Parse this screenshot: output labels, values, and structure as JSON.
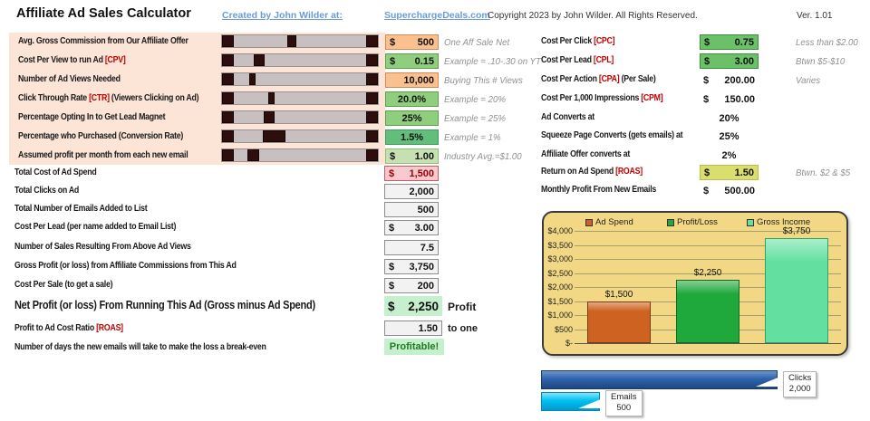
{
  "header": {
    "title": "Affiliate Ad Sales Calculator",
    "created_by": "Created by John Wilder at:",
    "site": "SuperchargeDeals.com",
    "copyright": "Copyright 2023 by John Wilder. All Rights Reserved.",
    "version": "Ver. 1.01"
  },
  "calculator": {
    "rows": [
      {
        "label": "Avg. Gross Commission from Our Affiliate Offer",
        "tag": "",
        "label2": "",
        "prefix": "$",
        "value": "500",
        "align": "split",
        "style": "orange",
        "note": "One Aff Sale Net",
        "slider": {
          "pos": 0.43,
          "thumb": 10
        }
      },
      {
        "label": "Cost Per View to run Ad",
        "tag": "[CPV]",
        "label2": "",
        "prefix": "$",
        "value": "0.15",
        "align": "split",
        "style": "green",
        "note": "Example = .10-.30 on YT",
        "slider": {
          "pos": 0.16,
          "thumb": 12
        }
      },
      {
        "label": "Number of Ad Views Needed",
        "tag": "",
        "label2": "",
        "prefix": "",
        "value": "10,000",
        "align": "right",
        "style": "orange",
        "note": "Buying This # Views",
        "slider": {
          "pos": 0.12,
          "thumb": 7
        }
      },
      {
        "label": "Click Through Rate",
        "tag": "[CTR]",
        "label2": "(Viewers Clicking on Ad)",
        "prefix": "",
        "value": "20.0%",
        "align": "center",
        "style": "green",
        "note": "Example = 20%",
        "slider": {
          "pos": 0.27,
          "thumb": 7
        }
      },
      {
        "label": "Percentage Opting In to Get Lead Magnet",
        "tag": "",
        "label2": "",
        "prefix": "",
        "value": "25%",
        "align": "center",
        "style": "green",
        "note": "Example = 25%",
        "slider": {
          "pos": 0.24,
          "thumb": 12
        }
      },
      {
        "label": "Percentage who Purchased (Conversion Rate)",
        "tag": "",
        "label2": "",
        "prefix": "",
        "value": "1.5%",
        "align": "center",
        "style": "greendark",
        "note": "Example = 1%",
        "slider": {
          "pos": 0.26,
          "thumb": 25
        }
      },
      {
        "label": "Assumed profit per month from each new email",
        "tag": "",
        "label2": "",
        "prefix": "$",
        "value": "1.00",
        "align": "split",
        "style": "palegreen",
        "note": "Industry Avg.=$1.00",
        "slider": {
          "pos": 0.11,
          "thumb": 13
        }
      }
    ]
  },
  "results": {
    "rows": [
      {
        "label": "Total Cost of Ad Spend",
        "prefix": "$",
        "value": "1,500",
        "style": "pink"
      },
      {
        "label": "Total Clicks on Ad",
        "prefix": "",
        "value": "2,000",
        "style": "gray"
      },
      {
        "label": "Total Number of Emails Added to List",
        "prefix": "",
        "value": "500",
        "style": "gray"
      },
      {
        "label": "Cost Per Lead (per name added to Email List)",
        "prefix": "$",
        "value": "3.00",
        "style": "gray"
      },
      {
        "label": "Number of Sales Resulting From Above Ad Views",
        "prefix": "",
        "value": "7.5",
        "style": "gray"
      },
      {
        "label": "Gross Profit (or loss) from Affiliate Commissions from This Ad",
        "prefix": "$",
        "value": "3,750",
        "style": "gray"
      },
      {
        "label": "Cost Per Sale (to get a sale)",
        "prefix": "$",
        "value": "200",
        "style": "gray"
      }
    ],
    "net": {
      "label": "Net Profit (or loss) From Running This Ad (Gross minus Ad Spend)",
      "prefix": "$",
      "value": "2,250",
      "suffix": "Profit"
    },
    "ratio": {
      "label": "Profit to Ad Cost Ratio",
      "tag": "[ROAS]",
      "value": "1.50",
      "suffix": "to one"
    },
    "days": {
      "label": "Number of days the new emails will take to make the loss a break-even",
      "value": "Profitable!"
    }
  },
  "metrics": {
    "rows": [
      {
        "label": "Cost Per Click",
        "tag": "[CPC]",
        "label2": "",
        "prefix": "$",
        "value": "0.75",
        "style": "green2",
        "note": "Less than $2.00"
      },
      {
        "label": "Cost Per Lead",
        "tag": "[CPL]",
        "label2": "",
        "prefix": "$",
        "value": "3.00",
        "style": "green2",
        "note": "Btwn $5-$10"
      },
      {
        "label": "Cost Per Action",
        "tag": "[CPA]",
        "label2": "(Per Sale)",
        "prefix": "$",
        "value": "200.00",
        "style": "plain",
        "note": "Varies"
      },
      {
        "label": "Cost Per 1,000 Impressions",
        "tag": "[CPM]",
        "label2": "",
        "prefix": "$",
        "value": "150.00",
        "style": "plain",
        "note": ""
      },
      {
        "label": "Ad Converts at",
        "tag": "",
        "label2": "",
        "prefix": "",
        "value": "20%",
        "style": "plain",
        "note": ""
      },
      {
        "label": "Squeeze Page Converts (gets emails) at",
        "tag": "",
        "label2": "",
        "prefix": "",
        "value": "25%",
        "style": "plain",
        "note": ""
      },
      {
        "label": "Affiliate Offer converts at",
        "tag": "",
        "label2": "",
        "prefix": "",
        "value": "2%",
        "style": "plain",
        "note": ""
      },
      {
        "label": "Return on Ad Spend",
        "tag": "[ROAS]",
        "label2": "",
        "prefix": "$",
        "value": "1.50",
        "style": "yellow",
        "note": "Btwn. $2 & $5"
      },
      {
        "label": "Monthly Profit From New Emails",
        "tag": "",
        "label2": "",
        "prefix": "$",
        "value": "500.00",
        "style": "plain",
        "note": ""
      }
    ]
  },
  "chart_data": [
    {
      "type": "bar",
      "title": "",
      "categories": [
        "Ad Spend",
        "Profit/Loss",
        "Gross Income"
      ],
      "values": [
        1500,
        2250,
        3750
      ],
      "data_labels": [
        "$1,500",
        "$2,250",
        "$3,750"
      ],
      "series_colors": [
        "#CE6321",
        "#1FA83C",
        "#63E0A0"
      ],
      "series_borders": [
        "#7A3A10",
        "#0E6B22",
        "#2FA368"
      ],
      "y_ticks": [
        "$4,000",
        "$3,500",
        "$3,000",
        "$2,500",
        "$2,000",
        "$1,500",
        "$1,000",
        "$500",
        "$-"
      ],
      "ylim": [
        0,
        4000
      ],
      "xlabel": "",
      "ylabel": "",
      "grid": true,
      "legend_position": "top",
      "background": "#F2D884"
    },
    {
      "type": "hbar",
      "bars": [
        {
          "label": "Clicks",
          "value": 2000,
          "display": "2,000",
          "color_top": "#6C95CC",
          "color": "#2E62AC",
          "color_bottom": "#1F477E",
          "border": "#173A66"
        },
        {
          "label": "Emails",
          "value": 500,
          "display": "500",
          "color_top": "#7FE4FB",
          "color": "#00C0F0",
          "color_bottom": "#009AD0",
          "border": "#0883B5"
        }
      ],
      "xlim": [
        0,
        2000
      ]
    }
  ],
  "colors": {
    "panel_peach": "#FCE4D6",
    "tag_red": "#C00000",
    "input_orange": "#FAC090",
    "input_green": "#8FCE7C",
    "input_green_dark": "#63BE7B",
    "input_pale_green": "#C6E0B4",
    "alert_pink": "#F8C9CE",
    "result_gray": "#F2F2F2",
    "good_green": "#C6EFCE",
    "roas_yellow": "#D9DE6F",
    "link_blue": "#6B9BD2",
    "chart_bg": "#F2D884"
  }
}
